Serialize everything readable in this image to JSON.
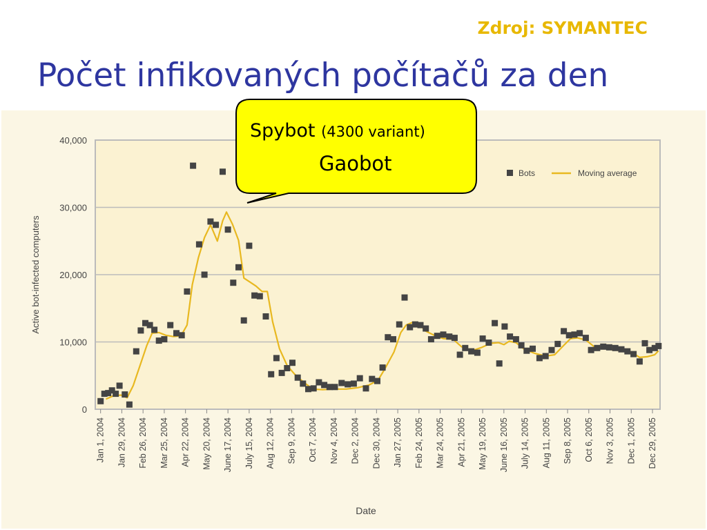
{
  "header": {
    "source": "Zdroj: SYMANTEC",
    "title": "Počet infikovaných počítačů za den"
  },
  "callout": {
    "name": "Spybot",
    "variant": "(4300 variant)",
    "name2": "Gaobot"
  },
  "colors": {
    "title": "#2e36a0",
    "source": "#e8b800",
    "panel": "#fbf6e4",
    "plot": "#fbf2d2",
    "bots": "#444444",
    "moving_average": "#e8b820",
    "callout_fill": "#ffff00"
  },
  "chart_data": {
    "type": "scatter",
    "xlabel": "Date",
    "ylabel": "Active bot-infected computers",
    "ylim": [
      0,
      40000
    ],
    "yticks": [
      0,
      10000,
      20000,
      30000,
      40000
    ],
    "ytick_labels": [
      "0",
      "10,000",
      "20,000",
      "30,000",
      "40,000"
    ],
    "xlim": [
      "2003-12-25",
      "2006-01-08"
    ],
    "xtick_dates": [
      "2004-01-01",
      "2004-01-29",
      "2004-02-26",
      "2004-03-25",
      "2004-04-22",
      "2004-05-20",
      "2004-06-17",
      "2004-07-15",
      "2004-08-12",
      "2004-09-09",
      "2004-10-07",
      "2004-11-04",
      "2004-12-02",
      "2004-12-30",
      "2005-01-27",
      "2005-02-24",
      "2005-03-24",
      "2005-04-21",
      "2005-05-19",
      "2005-06-16",
      "2005-07-14",
      "2005-08-11",
      "2005-09-08",
      "2005-10-06",
      "2005-11-03",
      "2005-12-01",
      "2005-12-29"
    ],
    "xtick_labels": [
      "Jan 1, 2004",
      "Jan 29, 2004",
      "Feb 26, 2004",
      "Mar 25, 2004",
      "Apr 22, 2004",
      "May 20, 2004",
      "June 17, 2004",
      "July 15, 2004",
      "Aug 12, 2004",
      "Sep 9, 2004",
      "Oct 7, 2004",
      "Nov 4, 2004",
      "Dec 2, 2004",
      "Dec 30, 2004",
      "Jan 27, 2005",
      "Feb 24, 2005",
      "Mar 24, 2005",
      "Apr 21, 2005",
      "May 19, 2005",
      "June 16, 2005",
      "July 14, 2005",
      "Aug 11, 2005",
      "Sep 8, 2005",
      "Oct 6, 2005",
      "Nov 3, 2005",
      "Dec 1, 2005",
      "Dec 29, 2005"
    ],
    "legend": {
      "placement": "top-right",
      "entries": [
        "Bots",
        "Moving average"
      ]
    },
    "grid": true,
    "series": [
      {
        "name": "Bots",
        "kind": "points",
        "points": [
          [
            "2004-01-01",
            1200
          ],
          [
            "2004-01-06",
            2300
          ],
          [
            "2004-01-11",
            2400
          ],
          [
            "2004-01-16",
            2800
          ],
          [
            "2004-01-21",
            2300
          ],
          [
            "2004-01-26",
            3500
          ],
          [
            "2004-02-02",
            2200
          ],
          [
            "2004-02-08",
            700
          ],
          [
            "2004-02-17",
            8600
          ],
          [
            "2004-02-23",
            11700
          ],
          [
            "2004-02-29",
            12800
          ],
          [
            "2004-03-06",
            12500
          ],
          [
            "2004-03-12",
            11800
          ],
          [
            "2004-03-18",
            10200
          ],
          [
            "2004-03-25",
            10400
          ],
          [
            "2004-04-02",
            12500
          ],
          [
            "2004-04-10",
            11300
          ],
          [
            "2004-04-17",
            11000
          ],
          [
            "2004-04-24",
            17500
          ],
          [
            "2004-05-02",
            36200
          ],
          [
            "2004-05-10",
            24500
          ],
          [
            "2004-05-17",
            20000
          ],
          [
            "2004-05-25",
            27900
          ],
          [
            "2004-06-01",
            27400
          ],
          [
            "2004-06-10",
            35300
          ],
          [
            "2004-06-17",
            26700
          ],
          [
            "2004-06-24",
            18800
          ],
          [
            "2004-07-01",
            21100
          ],
          [
            "2004-07-08",
            13200
          ],
          [
            "2004-07-15",
            24300
          ],
          [
            "2004-07-22",
            16900
          ],
          [
            "2004-07-29",
            16800
          ],
          [
            "2004-08-06",
            13800
          ],
          [
            "2004-08-13",
            5200
          ],
          [
            "2004-08-20",
            7600
          ],
          [
            "2004-08-27",
            5400
          ],
          [
            "2004-09-03",
            6100
          ],
          [
            "2004-09-10",
            6900
          ],
          [
            "2004-09-17",
            4700
          ],
          [
            "2004-09-24",
            3800
          ],
          [
            "2004-10-01",
            3000
          ],
          [
            "2004-10-08",
            3100
          ],
          [
            "2004-10-15",
            4000
          ],
          [
            "2004-10-22",
            3600
          ],
          [
            "2004-10-29",
            3300
          ],
          [
            "2004-11-05",
            3300
          ],
          [
            "2004-11-14",
            3900
          ],
          [
            "2004-11-22",
            3700
          ],
          [
            "2004-11-30",
            3800
          ],
          [
            "2004-12-08",
            4600
          ],
          [
            "2004-12-16",
            3100
          ],
          [
            "2004-12-24",
            4500
          ],
          [
            "2004-12-31",
            4200
          ],
          [
            "2005-01-07",
            6200
          ],
          [
            "2005-01-14",
            10700
          ],
          [
            "2005-01-21",
            10400
          ],
          [
            "2005-01-29",
            12600
          ],
          [
            "2005-02-05",
            16600
          ],
          [
            "2005-02-12",
            12200
          ],
          [
            "2005-02-19",
            12600
          ],
          [
            "2005-02-26",
            12500
          ],
          [
            "2005-03-05",
            12000
          ],
          [
            "2005-03-12",
            10400
          ],
          [
            "2005-03-20",
            10900
          ],
          [
            "2005-03-28",
            11100
          ],
          [
            "2005-04-05",
            10800
          ],
          [
            "2005-04-12",
            10600
          ],
          [
            "2005-04-19",
            8100
          ],
          [
            "2005-04-26",
            9100
          ],
          [
            "2005-05-04",
            8600
          ],
          [
            "2005-05-12",
            8400
          ],
          [
            "2005-05-19",
            10500
          ],
          [
            "2005-05-27",
            9900
          ],
          [
            "2005-06-04",
            12800
          ],
          [
            "2005-06-10",
            6800
          ],
          [
            "2005-06-17",
            12300
          ],
          [
            "2005-06-24",
            10800
          ],
          [
            "2005-07-02",
            10400
          ],
          [
            "2005-07-09",
            9500
          ],
          [
            "2005-07-16",
            8700
          ],
          [
            "2005-07-24",
            9000
          ],
          [
            "2005-08-02",
            7600
          ],
          [
            "2005-08-10",
            7900
          ],
          [
            "2005-08-18",
            8800
          ],
          [
            "2005-08-26",
            9700
          ],
          [
            "2005-09-03",
            11600
          ],
          [
            "2005-09-10",
            11000
          ],
          [
            "2005-09-17",
            11100
          ],
          [
            "2005-09-24",
            11300
          ],
          [
            "2005-10-02",
            10600
          ],
          [
            "2005-10-09",
            8800
          ],
          [
            "2005-10-17",
            9100
          ],
          [
            "2005-10-25",
            9300
          ],
          [
            "2005-11-02",
            9200
          ],
          [
            "2005-11-10",
            9100
          ],
          [
            "2005-11-18",
            8900
          ],
          [
            "2005-11-26",
            8600
          ],
          [
            "2005-12-04",
            8200
          ],
          [
            "2005-12-12",
            7100
          ],
          [
            "2005-12-19",
            9800
          ],
          [
            "2005-12-25",
            8800
          ],
          [
            "2006-01-01",
            9100
          ],
          [
            "2006-01-06",
            9400
          ]
        ]
      },
      {
        "name": "Moving average",
        "kind": "line",
        "points": [
          [
            "2004-01-08",
            1500
          ],
          [
            "2004-01-18",
            2000
          ],
          [
            "2004-01-28",
            2100
          ],
          [
            "2004-02-05",
            1700
          ],
          [
            "2004-02-13",
            3500
          ],
          [
            "2004-02-22",
            6500
          ],
          [
            "2004-03-02",
            9500
          ],
          [
            "2004-03-09",
            11300
          ],
          [
            "2004-03-18",
            11400
          ],
          [
            "2004-03-27",
            11000
          ],
          [
            "2004-04-06",
            10800
          ],
          [
            "2004-04-16",
            10900
          ],
          [
            "2004-04-24",
            12500
          ],
          [
            "2004-05-01",
            18500
          ],
          [
            "2004-05-09",
            22500
          ],
          [
            "2004-05-17",
            25500
          ],
          [
            "2004-05-25",
            27400
          ],
          [
            "2004-06-03",
            25000
          ],
          [
            "2004-06-10",
            28000
          ],
          [
            "2004-06-15",
            29300
          ],
          [
            "2004-06-23",
            27500
          ],
          [
            "2004-07-01",
            25100
          ],
          [
            "2004-07-08",
            19500
          ],
          [
            "2004-07-16",
            18900
          ],
          [
            "2004-07-24",
            18300
          ],
          [
            "2004-08-01",
            17500
          ],
          [
            "2004-08-08",
            17500
          ],
          [
            "2004-08-15",
            13000
          ],
          [
            "2004-08-24",
            9000
          ],
          [
            "2004-09-03",
            6500
          ],
          [
            "2004-09-13",
            5200
          ],
          [
            "2004-09-25",
            4000
          ],
          [
            "2004-10-07",
            3000
          ],
          [
            "2004-10-20",
            2900
          ],
          [
            "2004-11-04",
            3000
          ],
          [
            "2004-11-20",
            3000
          ],
          [
            "2004-12-05",
            3200
          ],
          [
            "2004-12-20",
            3600
          ],
          [
            "2005-01-01",
            4300
          ],
          [
            "2005-01-10",
            6000
          ],
          [
            "2005-01-22",
            8500
          ],
          [
            "2005-01-31",
            11400
          ],
          [
            "2005-02-07",
            12500
          ],
          [
            "2005-02-15",
            12900
          ],
          [
            "2005-02-24",
            12700
          ],
          [
            "2005-03-05",
            11600
          ],
          [
            "2005-03-16",
            11000
          ],
          [
            "2005-03-28",
            10500
          ],
          [
            "2005-04-10",
            10400
          ],
          [
            "2005-04-21",
            9300
          ],
          [
            "2005-05-05",
            8700
          ],
          [
            "2005-05-18",
            9200
          ],
          [
            "2005-05-30",
            9800
          ],
          [
            "2005-06-09",
            9900
          ],
          [
            "2005-06-16",
            9600
          ],
          [
            "2005-06-23",
            10100
          ],
          [
            "2005-07-02",
            9900
          ],
          [
            "2005-07-13",
            8900
          ],
          [
            "2005-07-27",
            8300
          ],
          [
            "2005-08-10",
            7900
          ],
          [
            "2005-08-22",
            8100
          ],
          [
            "2005-09-03",
            9500
          ],
          [
            "2005-09-12",
            10500
          ],
          [
            "2005-09-21",
            10600
          ],
          [
            "2005-10-02",
            10300
          ],
          [
            "2005-10-13",
            9300
          ],
          [
            "2005-10-26",
            9100
          ],
          [
            "2005-11-08",
            8800
          ],
          [
            "2005-11-22",
            8700
          ],
          [
            "2005-12-04",
            8300
          ],
          [
            "2005-12-12",
            7700
          ],
          [
            "2005-12-22",
            7800
          ],
          [
            "2006-01-01",
            8100
          ],
          [
            "2006-01-06",
            8700
          ]
        ]
      }
    ]
  }
}
